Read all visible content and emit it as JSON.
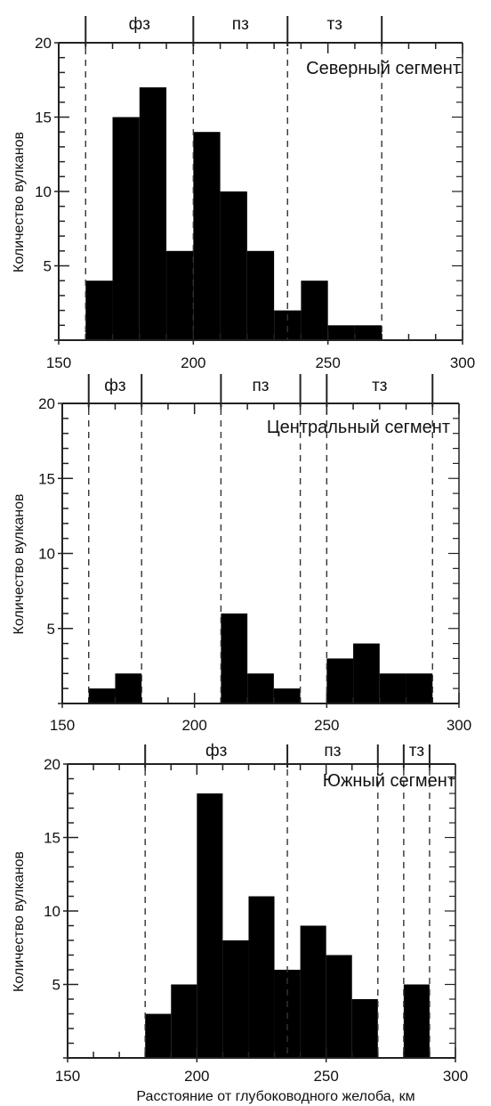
{
  "chart_data": [
    {
      "type": "bar",
      "title": "Северный сегмент",
      "ylabel": "Количество вулканов",
      "xlabel": "",
      "xlim": [
        150,
        300
      ],
      "ylim": [
        0,
        20
      ],
      "x_ticks": [
        "150",
        "200",
        "250",
        "300"
      ],
      "y_ticks": [
        "5",
        "10",
        "15",
        "20"
      ],
      "bin_width": 10,
      "bins": [
        {
          "x0": 160,
          "x1": 170,
          "value": 4
        },
        {
          "x0": 170,
          "x1": 180,
          "value": 15
        },
        {
          "x0": 180,
          "x1": 190,
          "value": 17
        },
        {
          "x0": 190,
          "x1": 200,
          "value": 6
        },
        {
          "x0": 200,
          "x1": 210,
          "value": 14
        },
        {
          "x0": 210,
          "x1": 220,
          "value": 10
        },
        {
          "x0": 220,
          "x1": 230,
          "value": 6
        },
        {
          "x0": 230,
          "x1": 240,
          "value": 2
        },
        {
          "x0": 240,
          "x1": 250,
          "value": 4
        },
        {
          "x0": 250,
          "x1": 260,
          "value": 1
        },
        {
          "x0": 260,
          "x1": 270,
          "value": 1
        }
      ],
      "zones": [
        {
          "label": "фз",
          "x0": 160,
          "x1": 200
        },
        {
          "label": "пз",
          "x0": 200,
          "x1": 235
        },
        {
          "label": "тз",
          "x0": 235,
          "x1": 270
        }
      ]
    },
    {
      "type": "bar",
      "title": "Центральный сегмент",
      "ylabel": "Количество вулканов",
      "xlabel": "",
      "xlim": [
        150,
        300
      ],
      "ylim": [
        0,
        20
      ],
      "x_ticks": [
        "150",
        "200",
        "250",
        "300"
      ],
      "y_ticks": [
        "5",
        "10",
        "15",
        "20"
      ],
      "bin_width": 10,
      "bins": [
        {
          "x0": 160,
          "x1": 170,
          "value": 1
        },
        {
          "x0": 170,
          "x1": 180,
          "value": 2
        },
        {
          "x0": 210,
          "x1": 220,
          "value": 6
        },
        {
          "x0": 220,
          "x1": 230,
          "value": 2
        },
        {
          "x0": 230,
          "x1": 240,
          "value": 1
        },
        {
          "x0": 250,
          "x1": 260,
          "value": 3
        },
        {
          "x0": 260,
          "x1": 270,
          "value": 4
        },
        {
          "x0": 270,
          "x1": 280,
          "value": 2
        },
        {
          "x0": 280,
          "x1": 290,
          "value": 2
        }
      ],
      "zones": [
        {
          "label": "фз",
          "x0": 160,
          "x1": 180
        },
        {
          "label": "пз",
          "x0": 210,
          "x1": 240
        },
        {
          "label": "тз",
          "x0": 250,
          "x1": 290
        }
      ]
    },
    {
      "type": "bar",
      "title": "Южный сегмент",
      "ylabel": "Количество вулканов",
      "xlabel": "Расстояние от глубоководного желоба, км",
      "xlim": [
        150,
        300
      ],
      "ylim": [
        0,
        20
      ],
      "x_ticks": [
        "150",
        "200",
        "250",
        "300"
      ],
      "y_ticks": [
        "5",
        "10",
        "15",
        "20"
      ],
      "bin_width": 10,
      "bins": [
        {
          "x0": 180,
          "x1": 190,
          "value": 3
        },
        {
          "x0": 190,
          "x1": 200,
          "value": 5
        },
        {
          "x0": 200,
          "x1": 210,
          "value": 18
        },
        {
          "x0": 210,
          "x1": 220,
          "value": 8
        },
        {
          "x0": 220,
          "x1": 230,
          "value": 11
        },
        {
          "x0": 230,
          "x1": 240,
          "value": 6
        },
        {
          "x0": 240,
          "x1": 250,
          "value": 9
        },
        {
          "x0": 250,
          "x1": 260,
          "value": 7
        },
        {
          "x0": 260,
          "x1": 270,
          "value": 4
        },
        {
          "x0": 280,
          "x1": 290,
          "value": 5
        }
      ],
      "zones": [
        {
          "label": "фз",
          "x0": 180,
          "x1": 235
        },
        {
          "label": "пз",
          "x0": 235,
          "x1": 270
        },
        {
          "label": "тз",
          "x0": 280,
          "x1": 290
        }
      ]
    }
  ]
}
